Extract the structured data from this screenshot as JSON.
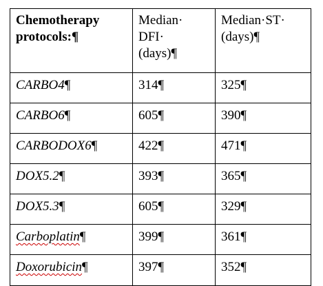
{
  "table": {
    "header": {
      "col1_line1": "Chemotherapy",
      "col1_line2": "protocols:¶",
      "col2_line1": "Median·",
      "col2_line2": "DFI·",
      "col2_line3": "(days)¶",
      "col3_line1": "Median·ST·",
      "col3_line2": "(days)¶"
    },
    "rows": [
      {
        "protocol": "CARBO4",
        "dfi": "314¶",
        "st": "325¶"
      },
      {
        "protocol": "CARBO6",
        "dfi": "605¶",
        "st": "390¶"
      },
      {
        "protocol": "CARBODOX6",
        "dfi": "422¶",
        "st": "471¶"
      },
      {
        "protocol": "DOX5.2",
        "dfi": "393¶",
        "st": "365¶"
      },
      {
        "protocol": "DOX5.3",
        "dfi": "605¶",
        "st": "329¶"
      },
      {
        "protocol": "Carboplatin",
        "dfi": "399¶",
        "st": "361¶"
      },
      {
        "protocol": "Doxorubicin",
        "dfi": "397¶",
        "st": "352¶"
      }
    ],
    "pilcrow": "¶"
  }
}
